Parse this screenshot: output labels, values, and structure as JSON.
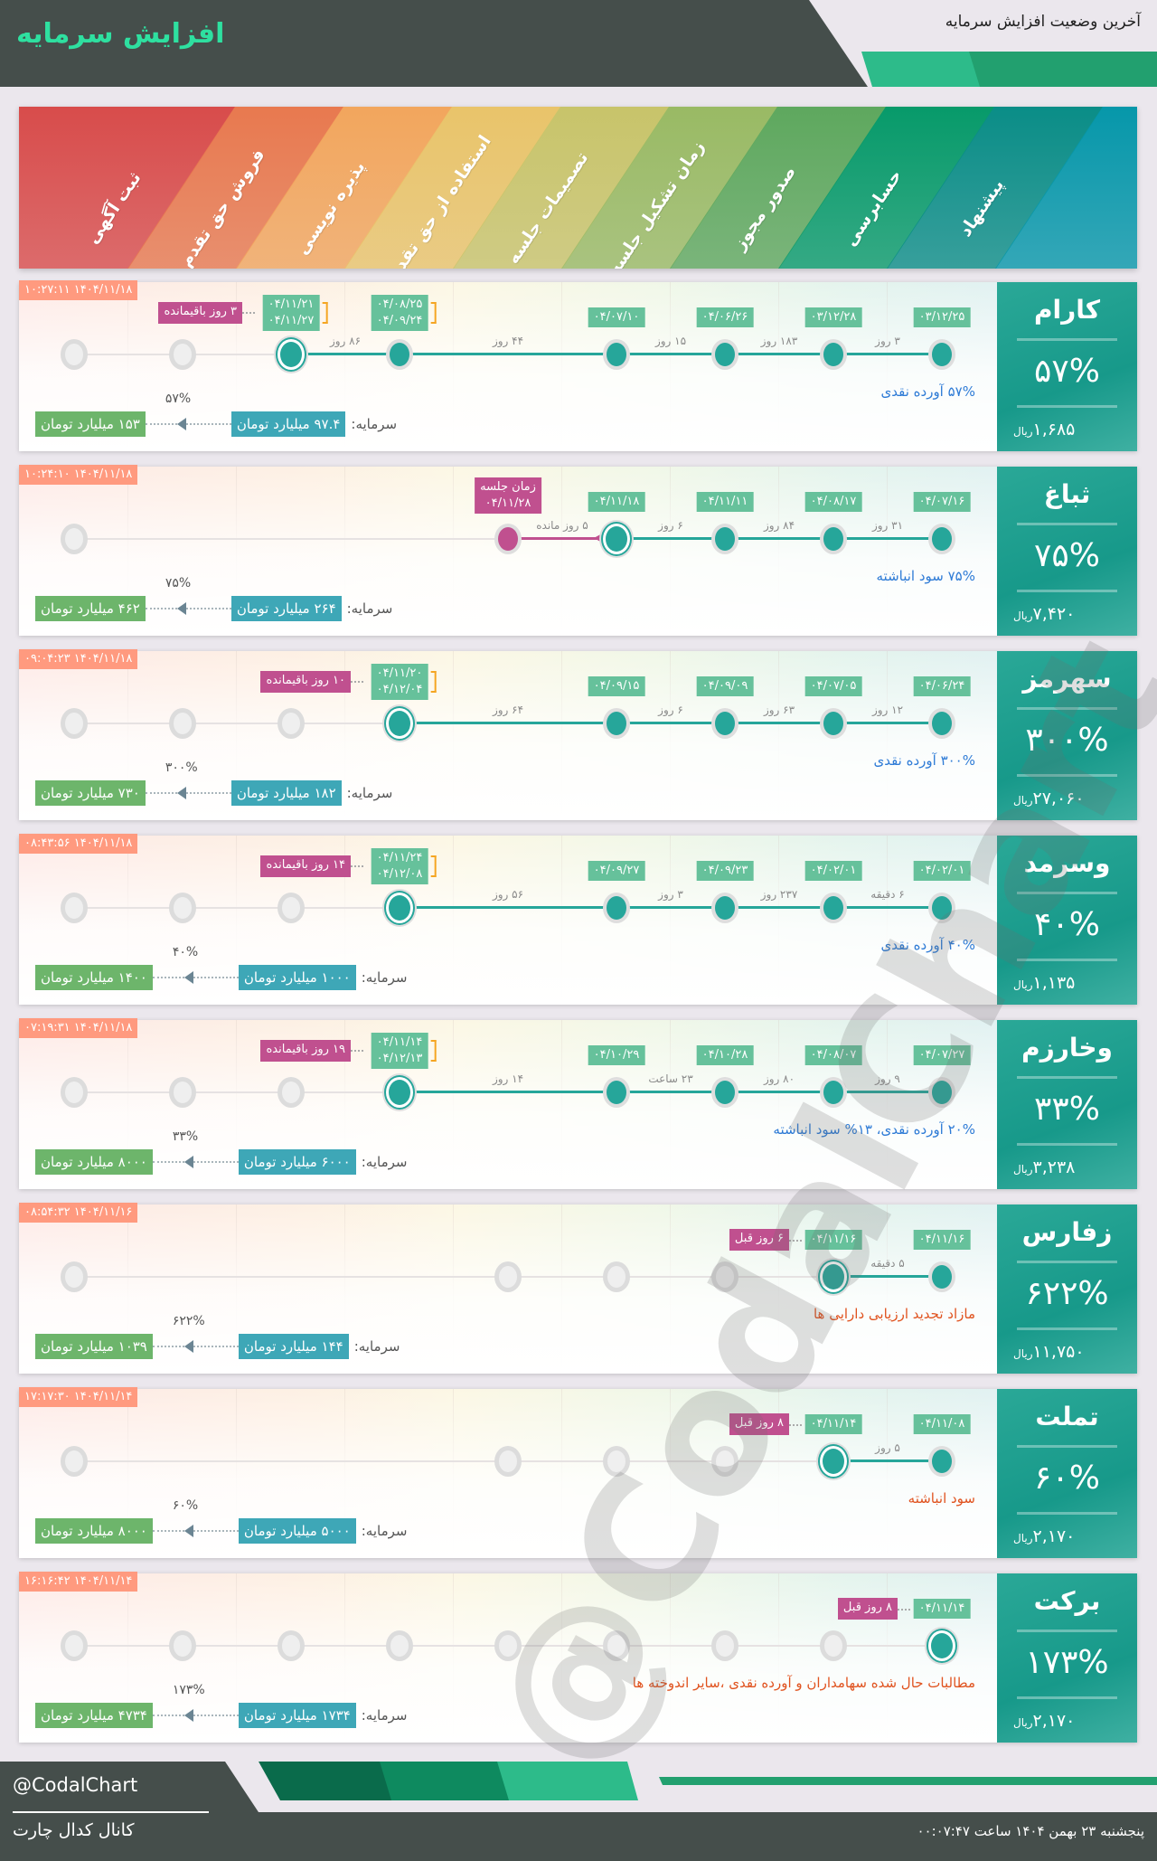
{
  "header": {
    "title": "افزایش سرمایه",
    "subtitle": "آخرین وضعیت افزایش سرمایه"
  },
  "stages": [
    "پیشنهاد",
    "حسابرسی",
    "صدور مجوز",
    "زمان تشکیل جلسه",
    "تصمیمات جلسه",
    "استفاده از حق تقدم",
    "پذیره نویسی",
    "فروش حق تقدم",
    "ثبت آگهی"
  ],
  "stage_colors": [
    "#0a8d87",
    "#079a6a",
    "#5ea85e",
    "#99ba64",
    "#c8c46a",
    "#e9c46a",
    "#f2a65d",
    "#e8794f",
    "#d84c4b",
    "#0697aa"
  ],
  "watermark": "@CodalChart",
  "capital_label": "سرمایه:",
  "currency": "ریال",
  "cards": [
    {
      "name": "کارام",
      "percent": "۵۷%",
      "price": "۱,۶۸۵",
      "timestamp": "۱۴۰۴/۱۱/۱۸ ۱۰:۲۷:۱۱",
      "description": "۵۷% آورده نقدی",
      "desc_color": "#2e7bd6",
      "capital_before": "۹۷.۴ میلیارد تومان",
      "capital_after": "۱۵۳ میلیارد تومان",
      "growth": "۵۷%",
      "nodes": [
        "done",
        "done",
        "done",
        "done",
        "none",
        "done",
        "current",
        "pending",
        "pending"
      ],
      "labels": [
        {
          "stage": 0,
          "lines": [
            "۰۳/۱۲/۲۵"
          ]
        },
        {
          "stage": 1,
          "lines": [
            "۰۳/۱۲/۲۸"
          ]
        },
        {
          "stage": 2,
          "lines": [
            "۰۴/۰۶/۲۶"
          ]
        },
        {
          "stage": 3,
          "lines": [
            "۰۴/۰۷/۱۰"
          ]
        },
        {
          "stage": 5,
          "lines": [
            "۰۴/۰۸/۲۵",
            "۰۴/۰۹/۲۴"
          ],
          "bracket": true
        },
        {
          "stage": 6,
          "lines": [
            "۰۴/۱۱/۲۱",
            "۰۴/۱۱/۲۷"
          ],
          "bracket": true
        }
      ],
      "side": {
        "stage": 6,
        "text": "۳ روز باقیمانده"
      },
      "gaps": [
        {
          "a": 0,
          "b": 1,
          "text": "۳ روز"
        },
        {
          "a": 1,
          "b": 2,
          "text": "۱۸۳ روز"
        },
        {
          "a": 2,
          "b": 3,
          "text": "۱۵ روز"
        },
        {
          "a": 3,
          "b": 5,
          "text": "۴۴ روز"
        },
        {
          "a": 5,
          "b": 6,
          "text": "۸۶ روز"
        }
      ]
    },
    {
      "name": "ثباغ",
      "percent": "۷۵%",
      "price": "۷,۴۲۰",
      "timestamp": "۱۴۰۴/۱۱/۱۸ ۱۰:۲۴:۱۰",
      "description": "۷۵% سود انباشته",
      "desc_color": "#2e7bd6",
      "capital_before": "۲۶۴ میلیارد تومان",
      "capital_after": "۴۶۲ میلیارد تومان",
      "growth": "۷۵%",
      "nodes": [
        "done",
        "done",
        "done",
        "current",
        "meeting",
        "none",
        "none",
        "none",
        "pending"
      ],
      "labels": [
        {
          "stage": 0,
          "lines": [
            "۰۴/۰۷/۱۶"
          ]
        },
        {
          "stage": 1,
          "lines": [
            "۰۴/۰۸/۱۷"
          ]
        },
        {
          "stage": 2,
          "lines": [
            "۰۴/۱۱/۱۱"
          ]
        },
        {
          "stage": 3,
          "lines": [
            "۰۴/۱۱/۱۸"
          ]
        },
        {
          "stage": 4,
          "lines": [
            "زمان جلسه",
            "۰۴/۱۱/۲۸"
          ],
          "pink": true
        }
      ],
      "gaps": [
        {
          "a": 0,
          "b": 1,
          "text": "۳۱ روز"
        },
        {
          "a": 1,
          "b": 2,
          "text": "۸۴ روز"
        },
        {
          "a": 2,
          "b": 3,
          "text": "۶ روز"
        },
        {
          "a": 3,
          "b": 4,
          "text": "۵ روز مانده"
        }
      ]
    },
    {
      "name": "سهرمز",
      "percent": "۳۰۰%",
      "price": "۲۷,۰۶۰",
      "timestamp": "۱۴۰۴/۱۱/۱۸ ۰۹:۰۴:۲۳",
      "description": "۳۰۰% آورده نقدی",
      "desc_color": "#2e7bd6",
      "capital_before": "۱۸۲ میلیارد تومان",
      "capital_after": "۷۳۰ میلیارد تومان",
      "growth": "۳۰۰%",
      "nodes": [
        "done",
        "done",
        "done",
        "done",
        "none",
        "current",
        "pending",
        "pending",
        "pending"
      ],
      "labels": [
        {
          "stage": 0,
          "lines": [
            "۰۴/۰۶/۲۴"
          ]
        },
        {
          "stage": 1,
          "lines": [
            "۰۴/۰۷/۰۵"
          ]
        },
        {
          "stage": 2,
          "lines": [
            "۰۴/۰۹/۰۹"
          ]
        },
        {
          "stage": 3,
          "lines": [
            "۰۴/۰۹/۱۵"
          ]
        },
        {
          "stage": 5,
          "lines": [
            "۰۴/۱۱/۲۰",
            "۰۴/۱۲/۰۴"
          ],
          "bracket": true
        }
      ],
      "side": {
        "stage": 5,
        "text": "۱۰ روز باقیمانده"
      },
      "gaps": [
        {
          "a": 0,
          "b": 1,
          "text": "۱۲ روز"
        },
        {
          "a": 1,
          "b": 2,
          "text": "۶۳ روز"
        },
        {
          "a": 2,
          "b": 3,
          "text": "۶ روز"
        },
        {
          "a": 3,
          "b": 5,
          "text": "۶۴ روز"
        }
      ]
    },
    {
      "name": "وسرمد",
      "percent": "۴۰%",
      "price": "۱,۱۳۵",
      "timestamp": "۱۴۰۴/۱۱/۱۸ ۰۸:۴۳:۵۶",
      "description": "۴۰% آورده نقدی",
      "desc_color": "#2e7bd6",
      "capital_before": "۱۰۰۰ میلیارد تومان",
      "capital_after": "۱۴۰۰ میلیارد تومان",
      "growth": "۴۰%",
      "nodes": [
        "done",
        "done",
        "done",
        "done",
        "none",
        "current",
        "pending",
        "pending",
        "pending"
      ],
      "labels": [
        {
          "stage": 0,
          "lines": [
            "۰۴/۰۲/۰۱"
          ]
        },
        {
          "stage": 1,
          "lines": [
            "۰۴/۰۲/۰۱"
          ]
        },
        {
          "stage": 2,
          "lines": [
            "۰۴/۰۹/۲۳"
          ]
        },
        {
          "stage": 3,
          "lines": [
            "۰۴/۰۹/۲۷"
          ]
        },
        {
          "stage": 5,
          "lines": [
            "۰۴/۱۱/۲۴",
            "۰۴/۱۲/۰۸"
          ],
          "bracket": true
        }
      ],
      "side": {
        "stage": 5,
        "text": "۱۴ روز باقیمانده"
      },
      "gaps": [
        {
          "a": 0,
          "b": 1,
          "text": "۶ دقیقه"
        },
        {
          "a": 1,
          "b": 2,
          "text": "۲۳۷ روز"
        },
        {
          "a": 2,
          "b": 3,
          "text": "۳ روز"
        },
        {
          "a": 3,
          "b": 5,
          "text": "۵۶ روز"
        }
      ]
    },
    {
      "name": "وخارزم",
      "percent": "۳۳%",
      "price": "۳,۲۳۸",
      "timestamp": "۱۴۰۴/۱۱/۱۸ ۰۷:۱۹:۳۱",
      "description": "۲۰% آورده نقدی، ۱۳% سود انباشته",
      "desc_color": "#2e7bd6",
      "capital_before": "۶۰۰۰ میلیارد تومان",
      "capital_after": "۸۰۰۰ میلیارد تومان",
      "growth": "۳۳%",
      "nodes": [
        "done",
        "done",
        "done",
        "done",
        "none",
        "current",
        "pending",
        "pending",
        "pending"
      ],
      "labels": [
        {
          "stage": 0,
          "lines": [
            "۰۴/۰۷/۲۷"
          ]
        },
        {
          "stage": 1,
          "lines": [
            "۰۴/۰۸/۰۷"
          ]
        },
        {
          "stage": 2,
          "lines": [
            "۰۴/۱۰/۲۸"
          ]
        },
        {
          "stage": 3,
          "lines": [
            "۰۴/۱۰/۲۹"
          ]
        },
        {
          "stage": 5,
          "lines": [
            "۰۴/۱۱/۱۴",
            "۰۴/۱۲/۱۳"
          ],
          "bracket": true
        }
      ],
      "side": {
        "stage": 5,
        "text": "۱۹ روز باقیمانده"
      },
      "gaps": [
        {
          "a": 0,
          "b": 1,
          "text": "۹ روز"
        },
        {
          "a": 1,
          "b": 2,
          "text": "۸۰ روز"
        },
        {
          "a": 2,
          "b": 3,
          "text": "۲۳ ساعت"
        },
        {
          "a": 3,
          "b": 5,
          "text": "۱۴ روز"
        }
      ]
    },
    {
      "name": "زفارس",
      "percent": "۶۲۲%",
      "price": "۱۱,۷۵۰",
      "timestamp": "۱۴۰۴/۱۱/۱۶ ۰۸:۵۴:۳۲",
      "description": "مازاد تجدید ارزیابی دارایی ها",
      "desc_color": "#e0531f",
      "capital_before": "۱۴۴ میلیارد تومان",
      "capital_after": "۱۰۳۹ میلیارد تومان",
      "growth": "۶۲۲%",
      "nodes": [
        "done",
        "current",
        "pending",
        "pending",
        "pending",
        "none",
        "none",
        "none",
        "pending"
      ],
      "labels": [
        {
          "stage": 0,
          "lines": [
            "۰۴/۱۱/۱۶"
          ]
        },
        {
          "stage": 1,
          "lines": [
            "۰۴/۱۱/۱۶"
          ]
        }
      ],
      "side": {
        "stage": 1,
        "text": "۶ روز قبل"
      },
      "gaps": [
        {
          "a": 0,
          "b": 1,
          "text": "۵ دقیقه"
        }
      ]
    },
    {
      "name": "تملت",
      "percent": "۶۰%",
      "price": "۲,۱۷۰",
      "timestamp": "۱۴۰۴/۱۱/۱۴ ۱۷:۱۷:۳۰",
      "description": "سود انباشته",
      "desc_color": "#e0531f",
      "capital_before": "۵۰۰۰ میلیارد تومان",
      "capital_after": "۸۰۰۰ میلیارد تومان",
      "growth": "۶۰%",
      "nodes": [
        "done",
        "current",
        "pending",
        "pending",
        "pending",
        "none",
        "none",
        "none",
        "pending"
      ],
      "labels": [
        {
          "stage": 0,
          "lines": [
            "۰۴/۱۱/۰۸"
          ]
        },
        {
          "stage": 1,
          "lines": [
            "۰۴/۱۱/۱۴"
          ]
        }
      ],
      "side": {
        "stage": 1,
        "text": "۸ روز قبل"
      },
      "gaps": [
        {
          "a": 0,
          "b": 1,
          "text": "۵ روز"
        }
      ]
    },
    {
      "name": "برکت",
      "percent": "۱۷۳%",
      "price": "۲,۱۷۰",
      "timestamp": "۱۴۰۴/۱۱/۱۴ ۱۶:۱۶:۴۲",
      "description": "مطالبات حال شده سهامداران و آورده نقدی ،سایر اندوخته ها",
      "desc_color": "#e0531f",
      "capital_before": "۱۷۳۴ میلیارد تومان",
      "capital_after": "۴۷۳۴ میلیارد تومان",
      "growth": "۱۷۳%",
      "nodes": [
        "current",
        "pending",
        "pending",
        "pending",
        "pending",
        "pending",
        "pending",
        "pending",
        "pending"
      ],
      "labels": [
        {
          "stage": 0,
          "lines": [
            "۰۴/۱۱/۱۴"
          ]
        }
      ],
      "side": {
        "stage": 0,
        "text": "۸ روز قبل"
      },
      "gaps": []
    }
  ],
  "footer": {
    "handle": "@CodalChart",
    "channel": "کانال کدال چارت",
    "date": "پنجشنبه ۲۳ بهمن ۱۴۰۴ ساعت ۰۰:۰۷:۴۷",
    "green_colors": [
      "#0a6b4b",
      "#0e8a5f",
      "#2dbb8a"
    ]
  }
}
